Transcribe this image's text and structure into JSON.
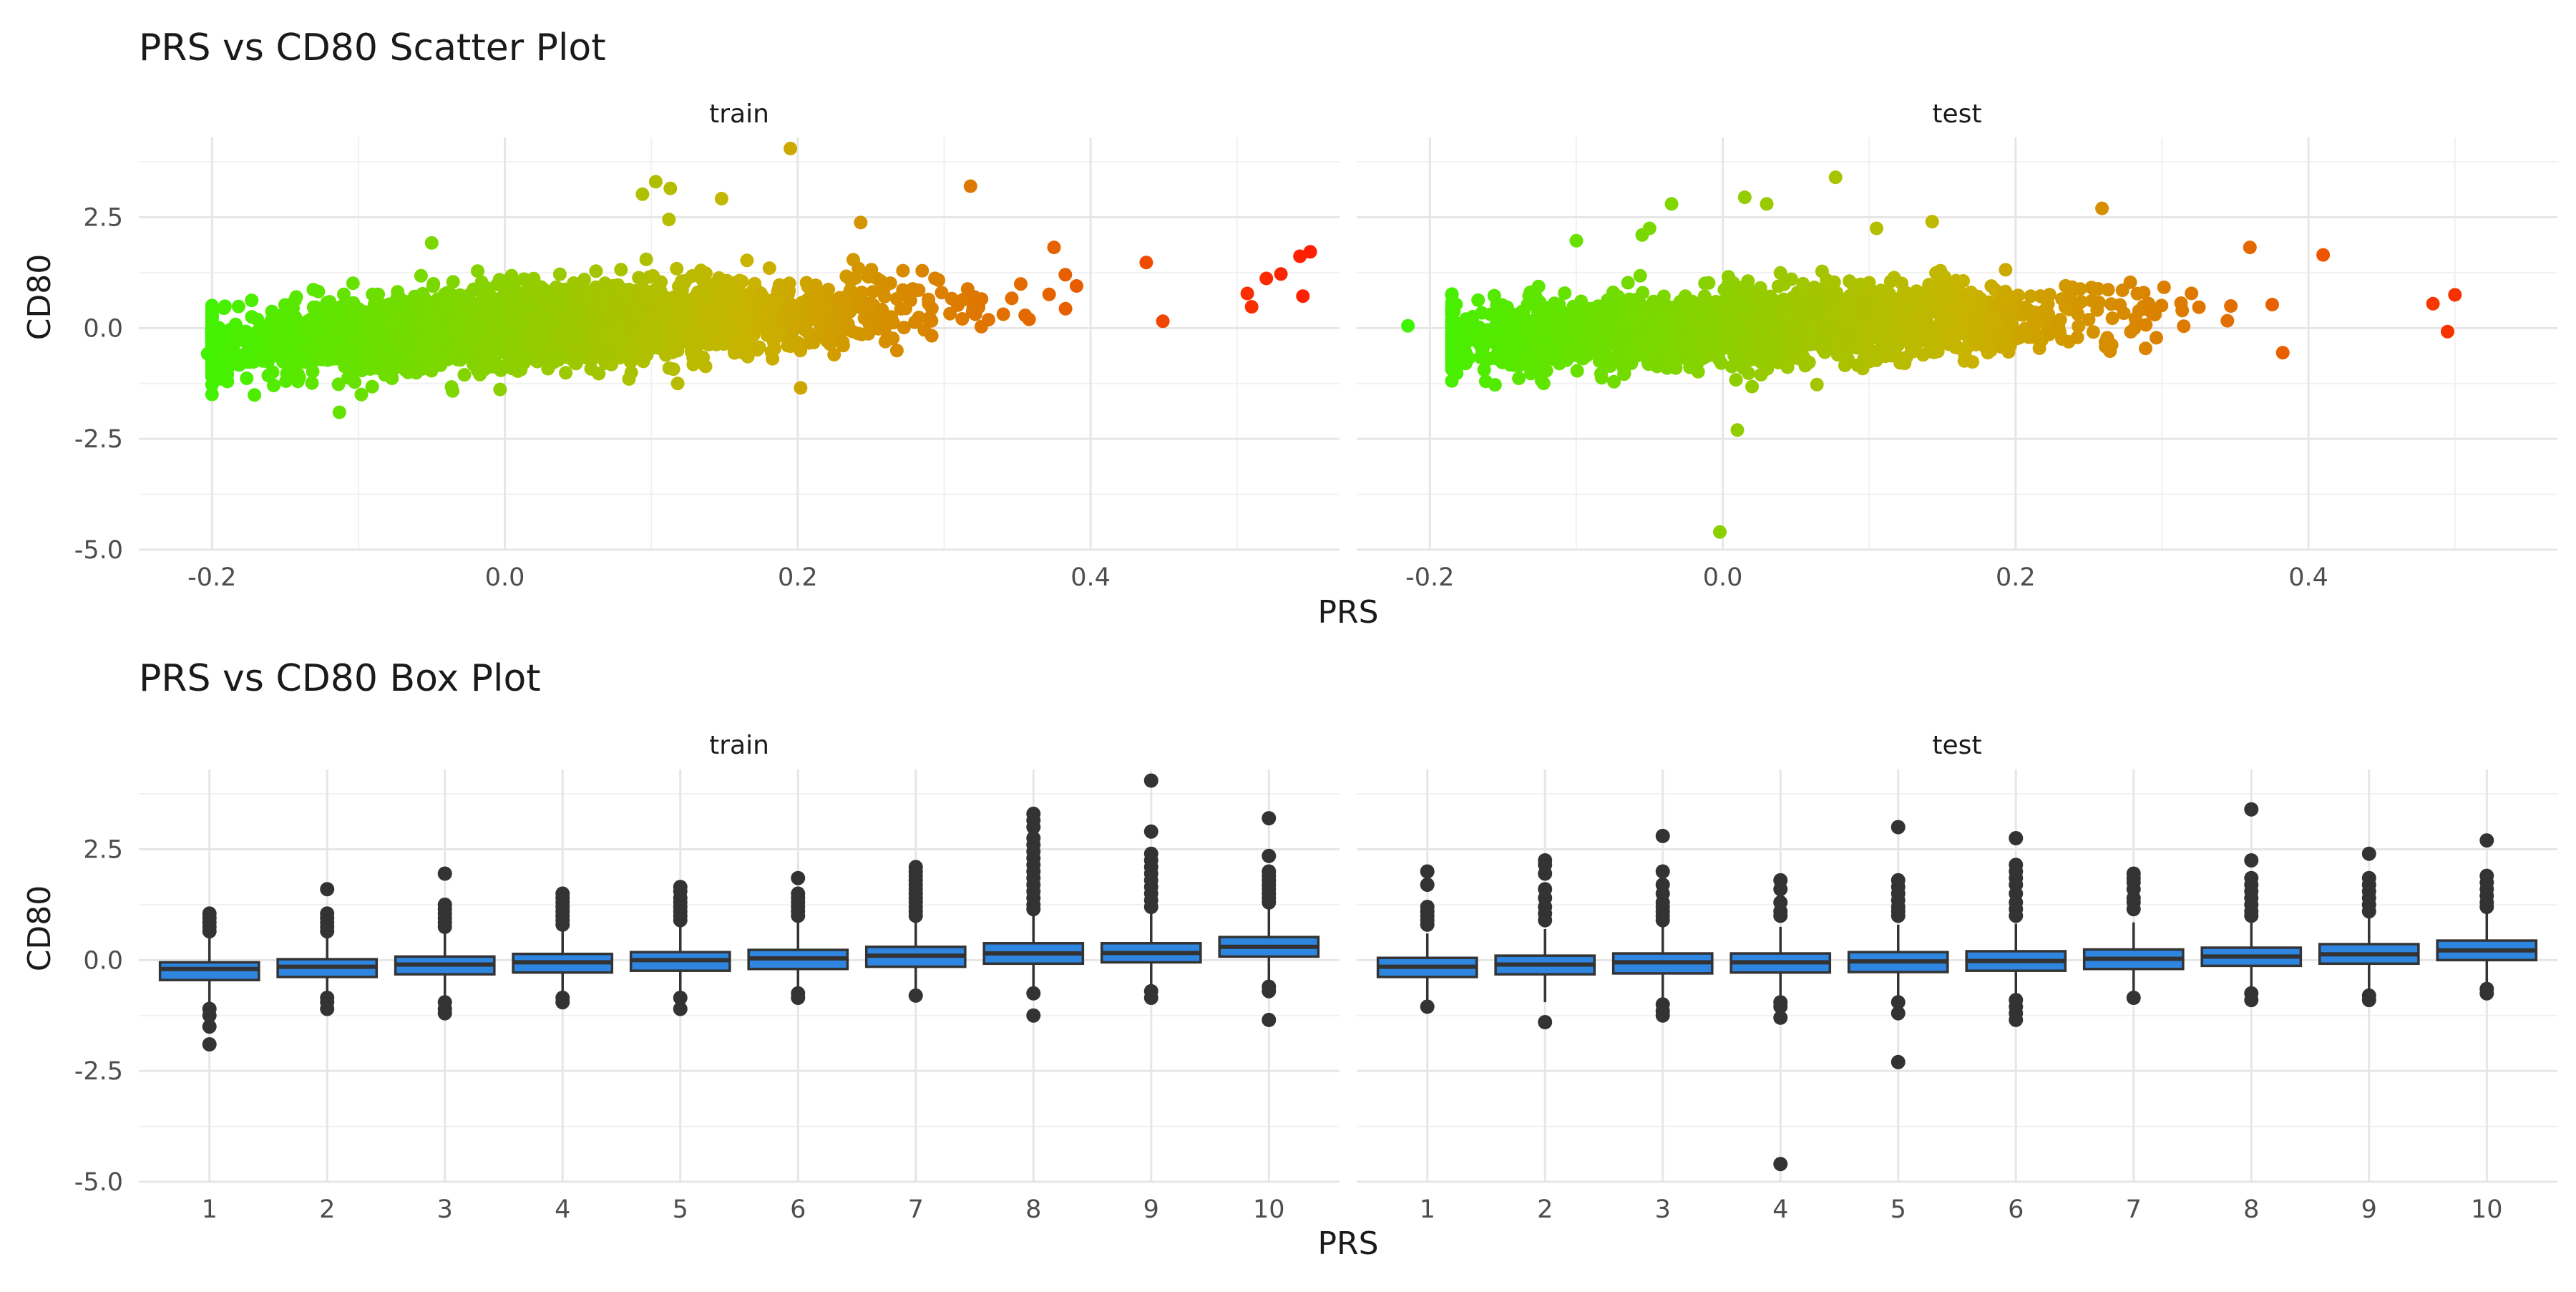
{
  "chart_data": [
    {
      "type": "scatter",
      "title": "PRS vs CD80 Scatter Plot",
      "xlabel": "PRS",
      "ylabel": "CD80",
      "xlim": [
        -0.25,
        0.57
      ],
      "ylim": [
        -5.0,
        4.3
      ],
      "xticks": [
        "-0.2",
        "0.0",
        "0.2",
        "0.4"
      ],
      "xtick_values": [
        -0.2,
        0.0,
        0.2,
        0.4
      ],
      "yticks": [
        "-5.0",
        "-2.5",
        "0.0",
        "2.5"
      ],
      "ytick_values": [
        -5.0,
        -2.5,
        0.0,
        2.5
      ],
      "grid": true,
      "color_scale": {
        "low": "#3cf500",
        "mid": "#c8b400",
        "high": "#ff1e00"
      },
      "panels": [
        {
          "strip": "train",
          "trend": {
            "slope": 1.6,
            "intercept": 0.0
          },
          "spread": 0.42,
          "x_range": [
            -0.2,
            0.5
          ],
          "outliers": [
            {
              "x": 0.195,
              "y": 4.05
            },
            {
              "x": 0.103,
              "y": 3.3
            },
            {
              "x": 0.113,
              "y": 3.15
            },
            {
              "x": 0.094,
              "y": 3.02
            },
            {
              "x": 0.318,
              "y": 3.2
            },
            {
              "x": 0.148,
              "y": 2.92
            },
            {
              "x": 0.243,
              "y": 2.38
            },
            {
              "x": 0.112,
              "y": 2.45
            },
            {
              "x": -0.113,
              "y": -1.9
            },
            {
              "x": -0.098,
              "y": -1.5
            },
            {
              "x": 0.202,
              "y": -1.35
            },
            {
              "x": 0.118,
              "y": -1.25
            },
            {
              "x": 0.55,
              "y": 1.72
            },
            {
              "x": 0.543,
              "y": 1.62
            },
            {
              "x": 0.53,
              "y": 1.22
            },
            {
              "x": 0.52,
              "y": 1.12
            },
            {
              "x": 0.545,
              "y": 0.72
            },
            {
              "x": 0.507,
              "y": 0.78
            },
            {
              "x": 0.51,
              "y": 0.48
            },
            {
              "x": -0.05,
              "y": 1.92
            },
            {
              "x": 0.375,
              "y": 1.82
            },
            {
              "x": 0.438,
              "y": 1.48
            },
            {
              "x": -0.203,
              "y": -0.58
            },
            {
              "x": -0.195,
              "y": -0.25
            }
          ]
        },
        {
          "strip": "test",
          "trend": {
            "slope": 1.3,
            "intercept": 0.0
          },
          "spread": 0.4,
          "x_range": [
            -0.185,
            0.51
          ],
          "outliers": [
            {
              "x": 0.077,
              "y": 3.4
            },
            {
              "x": 0.015,
              "y": 2.95
            },
            {
              "x": 0.03,
              "y": 2.8
            },
            {
              "x": -0.035,
              "y": 2.8
            },
            {
              "x": 0.259,
              "y": 2.7
            },
            {
              "x": 0.143,
              "y": 2.4
            },
            {
              "x": 0.105,
              "y": 2.25
            },
            {
              "x": -0.05,
              "y": 2.25
            },
            {
              "x": -0.055,
              "y": 2.1
            },
            {
              "x": -0.1,
              "y": 1.97
            },
            {
              "x": -0.002,
              "y": -4.6
            },
            {
              "x": 0.01,
              "y": -2.3
            },
            {
              "x": -0.215,
              "y": 0.05
            },
            {
              "x": -0.172,
              "y": -0.02
            },
            {
              "x": -0.164,
              "y": -0.52
            },
            {
              "x": 0.5,
              "y": 0.75
            },
            {
              "x": 0.485,
              "y": 0.55
            },
            {
              "x": 0.495,
              "y": -0.08
            },
            {
              "x": 0.41,
              "y": 1.65
            },
            {
              "x": 0.36,
              "y": 1.82
            },
            {
              "x": 0.02,
              "y": -1.32
            }
          ]
        }
      ]
    },
    {
      "type": "box",
      "title": "PRS vs CD80 Box Plot",
      "xlabel": "PRS",
      "ylabel": "CD80",
      "categories": [
        "1",
        "2",
        "3",
        "4",
        "5",
        "6",
        "7",
        "8",
        "9",
        "10"
      ],
      "ylim": [
        -5.0,
        4.3
      ],
      "yticks": [
        "-5.0",
        "-2.5",
        "0.0",
        "2.5"
      ],
      "ytick_values": [
        -5.0,
        -2.5,
        0.0,
        2.5
      ],
      "box_fill": "#2e86e0",
      "box_stroke": "#333333",
      "grid": true,
      "panels": [
        {
          "strip": "train",
          "boxes": [
            {
              "q1": -0.45,
              "median": -0.2,
              "q3": -0.05,
              "whisker_low": -1.0,
              "whisker_high": 0.55,
              "outliers": [
                1.05,
                0.95,
                0.85,
                0.75,
                0.65,
                -1.1,
                -1.25,
                -1.5,
                -1.9
              ]
            },
            {
              "q1": -0.38,
              "median": -0.15,
              "q3": 0.02,
              "whisker_low": -0.95,
              "whisker_high": 0.6,
              "outliers": [
                1.6,
                1.05,
                0.95,
                0.85,
                0.75,
                0.65,
                -0.85,
                -0.95,
                -1.1
              ]
            },
            {
              "q1": -0.32,
              "median": -0.1,
              "q3": 0.08,
              "whisker_low": -0.9,
              "whisker_high": 0.65,
              "outliers": [
                1.95,
                1.25,
                1.15,
                1.05,
                0.95,
                0.85,
                0.75,
                -0.95,
                -1.1,
                -1.2
              ]
            },
            {
              "q1": -0.28,
              "median": -0.05,
              "q3": 0.14,
              "whisker_low": -0.9,
              "whisker_high": 0.72,
              "outliers": [
                1.5,
                1.4,
                1.3,
                1.2,
                1.1,
                1.0,
                0.9,
                0.8,
                -0.85,
                -0.95
              ]
            },
            {
              "q1": -0.24,
              "median": 0.0,
              "q3": 0.18,
              "whisker_low": -0.85,
              "whisker_high": 0.78,
              "outliers": [
                1.65,
                1.55,
                1.4,
                1.3,
                1.2,
                1.1,
                1.0,
                0.9,
                -0.85,
                -1.1
              ]
            },
            {
              "q1": -0.2,
              "median": 0.04,
              "q3": 0.23,
              "whisker_low": -0.8,
              "whisker_high": 0.85,
              "outliers": [
                1.85,
                1.5,
                1.4,
                1.3,
                1.2,
                1.1,
                1.0,
                -0.75,
                -0.85
              ]
            },
            {
              "q1": -0.15,
              "median": 0.1,
              "q3": 0.3,
              "whisker_low": -0.8,
              "whisker_high": 0.95,
              "outliers": [
                2.1,
                2.0,
                1.9,
                1.8,
                1.7,
                1.6,
                1.5,
                1.4,
                1.3,
                1.2,
                1.1,
                1.0,
                -0.8
              ]
            },
            {
              "q1": -0.08,
              "median": 0.15,
              "q3": 0.38,
              "whisker_low": -0.75,
              "whisker_high": 1.05,
              "outliers": [
                3.3,
                3.15,
                3.0,
                2.75,
                2.6,
                2.45,
                2.3,
                2.15,
                2.0,
                1.85,
                1.7,
                1.55,
                1.4,
                1.25,
                1.15,
                -0.75,
                -1.25
              ]
            },
            {
              "q1": -0.05,
              "median": 0.16,
              "q3": 0.38,
              "whisker_low": -0.7,
              "whisker_high": 1.05,
              "outliers": [
                4.05,
                2.9,
                2.4,
                2.25,
                2.1,
                1.95,
                1.8,
                1.65,
                1.5,
                1.35,
                1.2,
                -0.7,
                -0.85
              ]
            },
            {
              "q1": 0.08,
              "median": 0.3,
              "q3": 0.52,
              "whisker_low": -0.5,
              "whisker_high": 1.15,
              "outliers": [
                3.2,
                2.35,
                2.0,
                1.9,
                1.8,
                1.7,
                1.6,
                1.5,
                1.4,
                1.3,
                -0.6,
                -0.7,
                -1.35
              ]
            }
          ]
        },
        {
          "strip": "test",
          "boxes": [
            {
              "q1": -0.38,
              "median": -0.15,
              "q3": 0.05,
              "whisker_low": -0.95,
              "whisker_high": 0.6,
              "outliers": [
                2.0,
                1.7,
                1.2,
                1.1,
                1.0,
                0.9,
                0.8,
                -1.05
              ]
            },
            {
              "q1": -0.32,
              "median": -0.1,
              "q3": 0.1,
              "whisker_low": -0.95,
              "whisker_high": 0.7,
              "outliers": [
                2.25,
                2.15,
                1.95,
                1.6,
                1.4,
                1.2,
                1.05,
                0.9,
                -1.4
              ]
            },
            {
              "q1": -0.3,
              "median": -0.05,
              "q3": 0.15,
              "whisker_low": -0.85,
              "whisker_high": 0.75,
              "outliers": [
                2.8,
                2.0,
                1.7,
                1.5,
                1.3,
                1.2,
                1.1,
                1.0,
                0.9,
                -1.0,
                -1.15,
                -1.25
              ]
            },
            {
              "q1": -0.28,
              "median": -0.05,
              "q3": 0.15,
              "whisker_low": -0.85,
              "whisker_high": 0.75,
              "outliers": [
                1.8,
                1.6,
                1.3,
                1.1,
                1.0,
                -0.95,
                -1.05,
                -1.3,
                -4.6
              ]
            },
            {
              "q1": -0.27,
              "median": -0.03,
              "q3": 0.18,
              "whisker_low": -0.85,
              "whisker_high": 0.8,
              "outliers": [
                3.0,
                1.8,
                1.65,
                1.5,
                1.35,
                1.2,
                1.1,
                1.0,
                -0.95,
                -1.2,
                -2.3
              ]
            },
            {
              "q1": -0.24,
              "median": -0.02,
              "q3": 0.2,
              "whisker_low": -0.85,
              "whisker_high": 0.82,
              "outliers": [
                2.75,
                2.15,
                2.0,
                1.85,
                1.7,
                1.5,
                1.3,
                1.15,
                1.0,
                -0.9,
                -1.05,
                -1.2,
                -1.35
              ]
            },
            {
              "q1": -0.2,
              "median": 0.03,
              "q3": 0.24,
              "whisker_low": -0.8,
              "whisker_high": 0.85,
              "outliers": [
                1.95,
                1.85,
                1.75,
                1.6,
                1.4,
                1.3,
                1.15,
                -0.85
              ]
            },
            {
              "q1": -0.13,
              "median": 0.08,
              "q3": 0.28,
              "whisker_low": -0.75,
              "whisker_high": 0.9,
              "outliers": [
                3.4,
                2.25,
                1.85,
                1.7,
                1.55,
                1.4,
                1.25,
                1.1,
                1.0,
                -0.75,
                -0.9
              ]
            },
            {
              "q1": -0.08,
              "median": 0.13,
              "q3": 0.36,
              "whisker_low": -0.75,
              "whisker_high": 1.0,
              "outliers": [
                2.4,
                1.85,
                1.7,
                1.55,
                1.4,
                1.25,
                1.1,
                -0.8,
                -0.9
              ]
            },
            {
              "q1": 0.0,
              "median": 0.22,
              "q3": 0.44,
              "whisker_low": -0.6,
              "whisker_high": 1.05,
              "outliers": [
                2.7,
                1.9,
                1.75,
                1.6,
                1.45,
                1.3,
                1.2,
                -0.65,
                -0.75
              ]
            }
          ]
        }
      ]
    }
  ]
}
